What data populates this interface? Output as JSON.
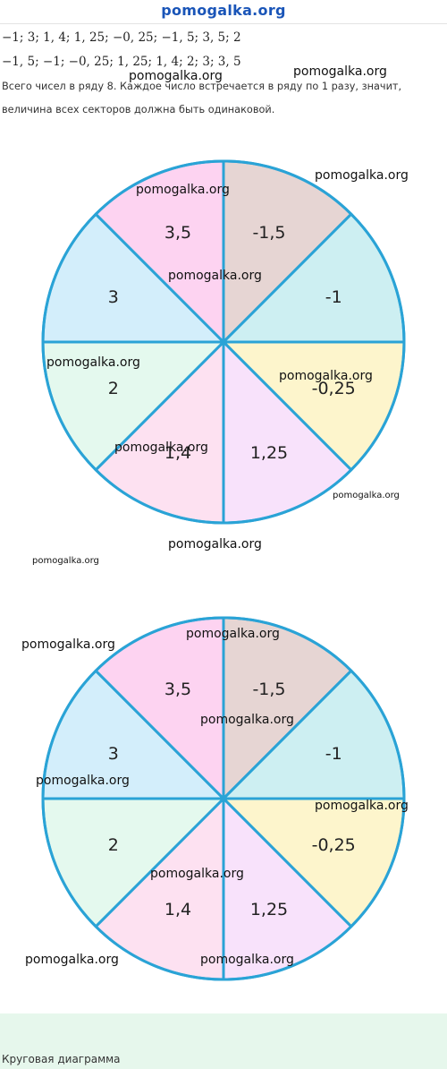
{
  "header": {
    "site_title": "pomogalka.org"
  },
  "math_lines": [
    "−1;  3;  1, 4;  1, 25;  −0, 25;  −1, 5;  3, 5;  2",
    "−1, 5;  −1;  −0, 25;  1, 25;  1, 4;  2;  3;  3, 5"
  ],
  "explanation": [
    "Всего чисел в ряду 8. Каждое число встречается в ряду по 1 разу, значит,",
    "величина всех секторов должна быть одинаковой."
  ],
  "watermark_text": "pomogalka.org",
  "chart_data": [
    {
      "type": "pie",
      "categories": [
        "-1,5",
        "-1",
        "-0,25",
        "1,25",
        "1,4",
        "2",
        "3",
        "3,5"
      ],
      "values": [
        1,
        1,
        1,
        1,
        1,
        1,
        1,
        1
      ],
      "colors": [
        "#e6d5d3",
        "#cdeff2",
        "#fdf5cc",
        "#f8e2fb",
        "#fde1f1",
        "#e4f9ee",
        "#d3eefb",
        "#fdd3f1"
      ],
      "edge_color": "#2aa3d6",
      "start": "top, clockwise",
      "title": ""
    },
    {
      "type": "pie",
      "categories": [
        "-1,5",
        "-1",
        "-0,25",
        "1,25",
        "1,4",
        "2",
        "3",
        "3,5"
      ],
      "values": [
        1,
        1,
        1,
        1,
        1,
        1,
        1,
        1
      ],
      "colors": [
        "#e6d5d3",
        "#cdeff2",
        "#fdf5cc",
        "#f8e2fb",
        "#fde1f1",
        "#e4f9ee",
        "#d3eefb",
        "#fdd3f1"
      ],
      "edge_color": "#2aa3d6",
      "start": "top, clockwise",
      "title": ""
    }
  ],
  "footer": {
    "caption": "Круговая диаграмма"
  }
}
